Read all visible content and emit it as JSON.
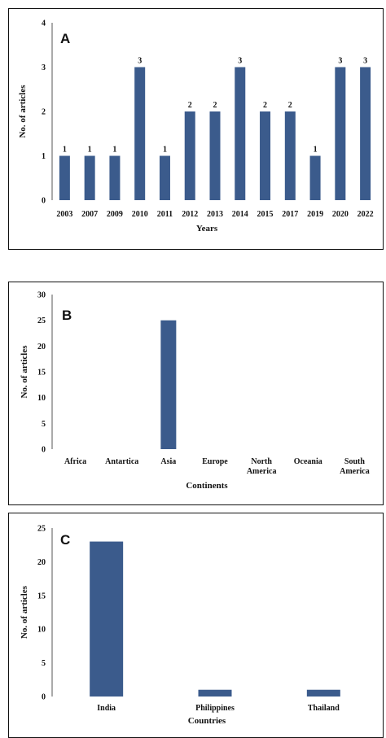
{
  "bar_color": "#3b5b8c",
  "chart_data": [
    {
      "type": "bar",
      "panel_label": "A",
      "title": "",
      "xlabel": "Years",
      "ylabel": "No. of articles",
      "ylim": [
        0,
        4
      ],
      "yticks": [
        0,
        1,
        2,
        3,
        4
      ],
      "categories": [
        "2003",
        "2007",
        "2009",
        "2010",
        "2011",
        "2012",
        "2013",
        "2014",
        "2015",
        "2017",
        "2019",
        "2020",
        "2022"
      ],
      "values": [
        1,
        1,
        1,
        3,
        1,
        2,
        2,
        3,
        2,
        2,
        1,
        3,
        3
      ],
      "data_labels": [
        "1",
        "1",
        "1",
        "3",
        "1",
        "2",
        "2",
        "3",
        "2",
        "2",
        "1",
        "3",
        "3"
      ],
      "grid": false,
      "legend": "none"
    },
    {
      "type": "bar",
      "panel_label": "B",
      "title": "",
      "xlabel": "Continents",
      "ylabel": "No. of articles",
      "ylim": [
        0,
        30
      ],
      "yticks": [
        0,
        5,
        10,
        15,
        20,
        25,
        30
      ],
      "categories": [
        [
          "Africa"
        ],
        [
          "Antartica"
        ],
        [
          "Asia"
        ],
        [
          "Europe"
        ],
        [
          "North",
          "America"
        ],
        [
          "Oceania"
        ],
        [
          "South",
          "America"
        ]
      ],
      "values": [
        0,
        0,
        25,
        0,
        0,
        0,
        0
      ],
      "grid": false,
      "legend": "none"
    },
    {
      "type": "bar",
      "panel_label": "C",
      "title": "",
      "xlabel": "Countries",
      "ylabel": "No. of articles",
      "ylim": [
        0,
        25
      ],
      "yticks": [
        0,
        5,
        10,
        15,
        20,
        25
      ],
      "categories": [
        [
          "India"
        ],
        [
          "Philippines"
        ],
        [
          "Thailand"
        ]
      ],
      "values": [
        23,
        1,
        1
      ],
      "grid": false,
      "legend": "none"
    }
  ]
}
